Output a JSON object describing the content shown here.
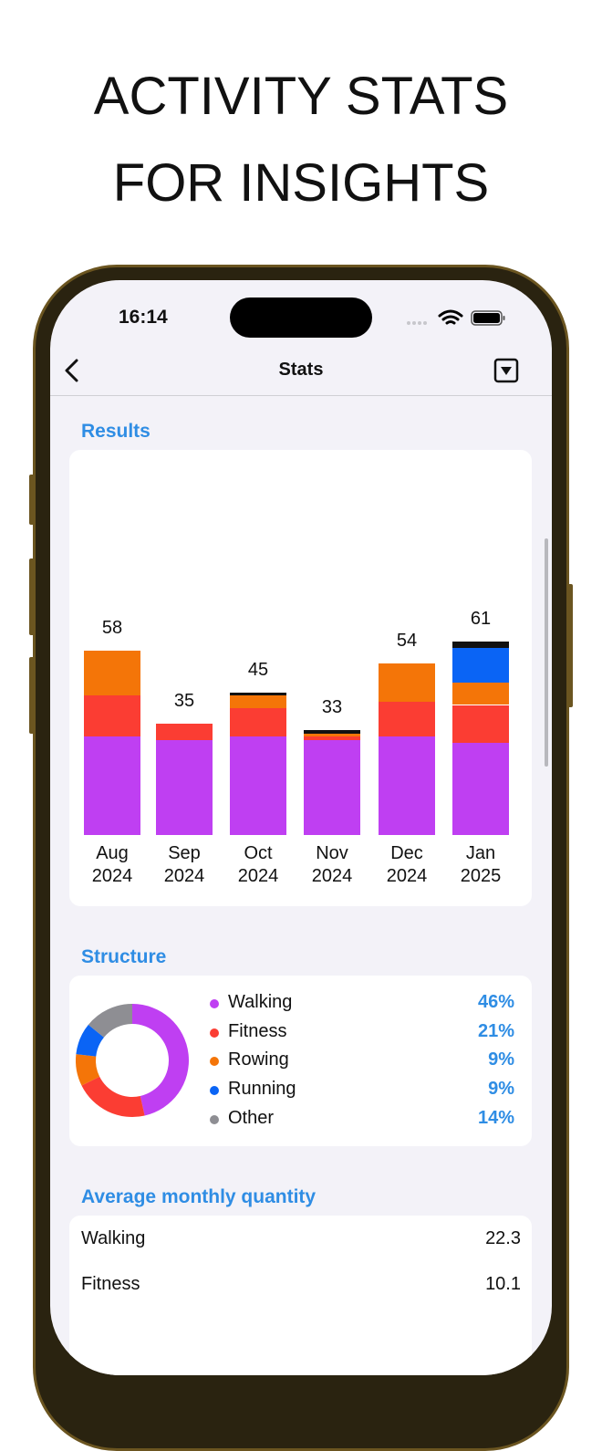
{
  "headline": [
    "ACTIVITY STATS",
    "FOR INSIGHTS"
  ],
  "status_bar": {
    "time": "16:14"
  },
  "nav": {
    "title": "Stats"
  },
  "results": {
    "title": "Results",
    "type": "stacked-bar",
    "categories": [
      "Aug 2024",
      "Sep 2024",
      "Oct 2024",
      "Nov 2024",
      "Dec 2024",
      "Jan 2025"
    ],
    "totals": [
      58,
      35,
      45,
      33,
      54,
      61
    ],
    "series": [
      {
        "name": "Walking",
        "color": "#bf3ff2",
        "values": [
          31,
          30,
          31,
          30,
          31,
          29
        ]
      },
      {
        "name": "Fitness",
        "color": "#fb3d33",
        "values": [
          13,
          5,
          9,
          1,
          11,
          12
        ]
      },
      {
        "name": "Rowing",
        "color": "#f47508",
        "values": [
          14,
          0,
          4,
          1,
          12,
          7
        ]
      },
      {
        "name": "Running",
        "color": "#0a64f5",
        "values": [
          0,
          0,
          0,
          0,
          0,
          11
        ]
      },
      {
        "name": "Other",
        "color": "#111111",
        "values": [
          0,
          0,
          1,
          1,
          0,
          2
        ]
      }
    ]
  },
  "structure": {
    "title": "Structure",
    "type": "donut",
    "items": [
      {
        "name": "Walking",
        "color": "#bf3ff2",
        "value": 46,
        "value_label": "46%"
      },
      {
        "name": "Fitness",
        "color": "#fb3d33",
        "value": 21,
        "value_label": "21%"
      },
      {
        "name": "Rowing",
        "color": "#f47508",
        "value": 9,
        "value_label": "9%"
      },
      {
        "name": "Running",
        "color": "#0a64f5",
        "value": 9,
        "value_label": "9%"
      },
      {
        "name": "Other",
        "color": "#8e8e93",
        "value": 14,
        "value_label": "14%"
      }
    ]
  },
  "average": {
    "title": "Average monthly quantity",
    "rows": [
      {
        "name": "Walking",
        "value": 22.3
      },
      {
        "name": "Fitness",
        "value": 10.1
      }
    ]
  }
}
